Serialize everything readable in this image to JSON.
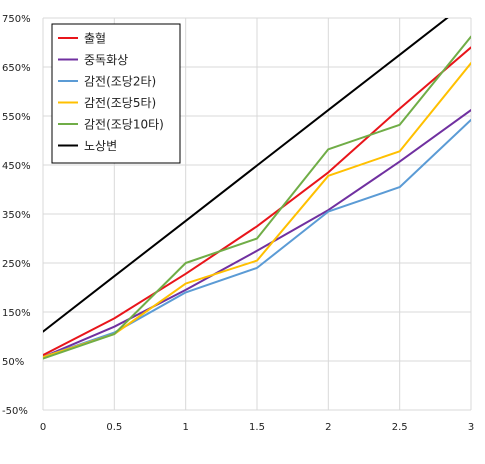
{
  "chart_data": {
    "type": "line",
    "x": [
      0,
      0.5,
      1,
      1.5,
      2,
      2.5,
      3
    ],
    "x_tick_labels": [
      "0",
      "0.5",
      "1",
      "1.5",
      "2",
      "2.5",
      "3"
    ],
    "xlim": [
      0,
      3
    ],
    "ylim": [
      -50,
      750
    ],
    "y_ticks": [
      -50,
      50,
      150,
      250,
      350,
      450,
      550,
      650,
      750
    ],
    "y_tick_labels": [
      "-50%",
      "50%",
      "150%",
      "250%",
      "350%",
      "450%",
      "550%",
      "650%",
      "750%"
    ],
    "grid": true,
    "legend_position": "top-left",
    "series": [
      {
        "name": "출혈",
        "color": "#e8151b",
        "values": [
          62,
          137,
          228,
          325,
          435,
          565,
          690
        ]
      },
      {
        "name": "중독화상",
        "color": "#7030a0",
        "values": [
          58,
          120,
          195,
          275,
          358,
          457,
          562
        ]
      },
      {
        "name": "감전(조당2타)",
        "color": "#5b9bd5",
        "values": [
          58,
          108,
          190,
          240,
          355,
          405,
          542
        ]
      },
      {
        "name": "감전(조당5타)",
        "color": "#ffc000",
        "values": [
          58,
          105,
          208,
          255,
          428,
          478,
          658
        ]
      },
      {
        "name": "감전(조당10타)",
        "color": "#70ad47",
        "values": [
          55,
          105,
          250,
          300,
          482,
          532,
          712
        ]
      },
      {
        "name": "노상변",
        "color": "#000000",
        "values": [
          110,
          223,
          336,
          449,
          562,
          675,
          788
        ]
      }
    ]
  }
}
